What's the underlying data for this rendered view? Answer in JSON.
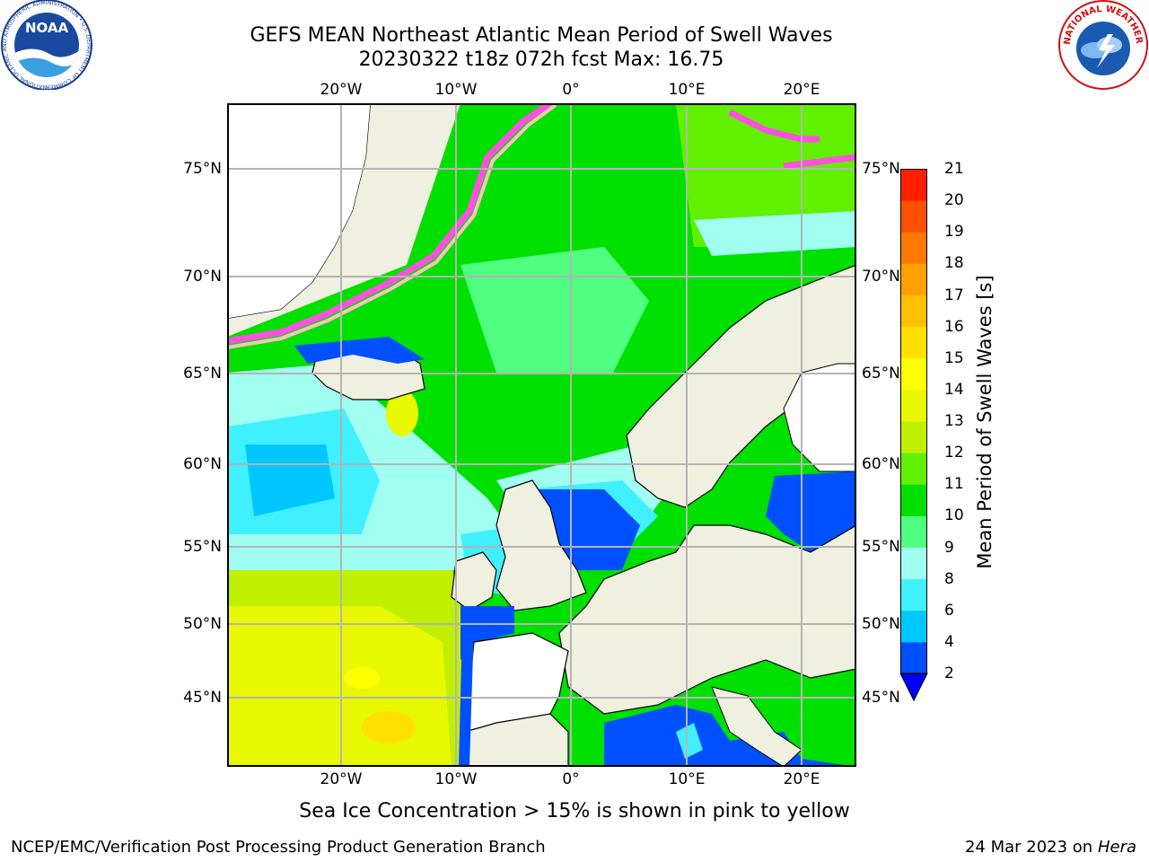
{
  "title_line1": "GEFS MEAN Northeast Atlantic Mean Period of Swell Waves",
  "title_line2": "20230322 t18z 072h fcst   Max: 16.75",
  "lon_labels": [
    "20°W",
    "10°W",
    "0°",
    "10°E",
    "20°E"
  ],
  "lat_labels": [
    "75°N",
    "70°N",
    "65°N",
    "60°N",
    "55°N",
    "50°N",
    "45°N"
  ],
  "colorbar": {
    "title": "Mean Period of Swell Waves [s]",
    "ticks": [
      "2",
      "4",
      "6",
      "8",
      "9",
      "10",
      "11",
      "12",
      "13",
      "14",
      "15",
      "16",
      "17",
      "18",
      "19",
      "20",
      "21"
    ],
    "colors": [
      "#0050ff",
      "#00c8ff",
      "#40f0ff",
      "#a0fff0",
      "#50ff80",
      "#00e000",
      "#60f000",
      "#c0f000",
      "#e8f800",
      "#ffff00",
      "#ffe000",
      "#ffc000",
      "#ffa000",
      "#ff7800",
      "#ff5000",
      "#ff2000"
    ]
  },
  "note": "Sea Ice Concentration > 15% is shown in pink to yellow",
  "footer_left": "NCEP/EMC/Verification Post Processing Product Generation Branch",
  "footer_right_date": "24 Mar 2023 on",
  "footer_right_machine": "Hera",
  "logos": {
    "noaa_text": "NOAA",
    "noaa_ring": "NATIONAL OCEANIC AND ATMOSPHERIC ADMINISTRATION • U.S. DEPARTMENT OF COMMERCE",
    "nws_ring": "NATIONAL WEATHER SERVICE"
  }
}
